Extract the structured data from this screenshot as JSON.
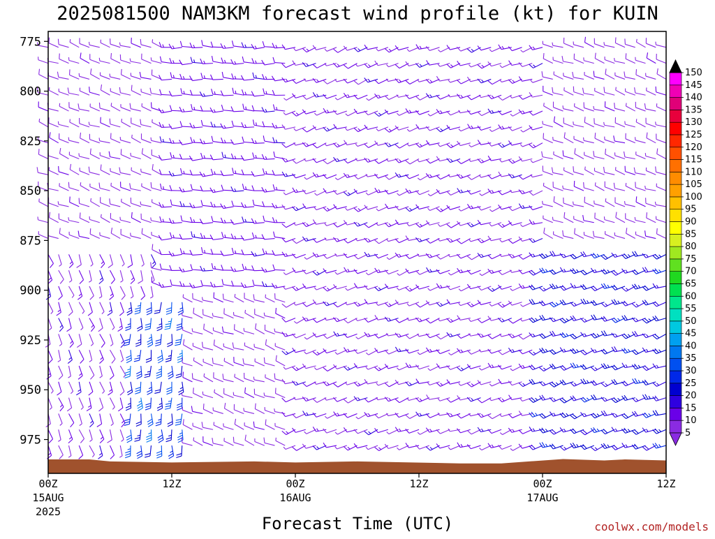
{
  "chart_data": {
    "type": "wind-barb-time-height",
    "title": "2025081500 NAM3KM forecast wind profile (kt) for KUIN",
    "xlabel": "Forecast Time (UTC)",
    "ylabel": "",
    "credit": "coolwx.com/models",
    "y_axis": {
      "units": "hPa",
      "range": [
        770,
        992
      ],
      "inverted": true,
      "ticks": [
        "775",
        "800",
        "825",
        "850",
        "875",
        "900",
        "925",
        "950",
        "975"
      ]
    },
    "x_axis": {
      "units": "forecast hour",
      "range": [
        0,
        60
      ],
      "ticks": [
        {
          "hour": 0,
          "label": "00Z",
          "sub": "15AUG",
          "sub2": "2025"
        },
        {
          "hour": 12,
          "label": "12Z",
          "sub": "",
          "sub2": ""
        },
        {
          "hour": 24,
          "label": "00Z",
          "sub": "16AUG",
          "sub2": ""
        },
        {
          "hour": 36,
          "label": "12Z",
          "sub": "",
          "sub2": ""
        },
        {
          "hour": 48,
          "label": "00Z",
          "sub": "17AUG",
          "sub2": ""
        },
        {
          "hour": 60,
          "label": "12Z",
          "sub": "",
          "sub2": ""
        }
      ]
    },
    "colorbar": {
      "units": "kt",
      "ticks": [
        "5",
        "10",
        "15",
        "20",
        "25",
        "30",
        "35",
        "40",
        "45",
        "50",
        "55",
        "60",
        "65",
        "70",
        "75",
        "80",
        "85",
        "90",
        "95",
        "100",
        "105",
        "110",
        "115",
        "120",
        "125",
        "130",
        "135",
        "140",
        "145",
        "150"
      ],
      "colors": [
        "#8a2be2",
        "#6a00e8",
        "#2f00e0",
        "#0000d0",
        "#0028e8",
        "#0050f0",
        "#0078f0",
        "#00a0f0",
        "#00c8e0",
        "#00e0c0",
        "#00e68c",
        "#00e050",
        "#20d820",
        "#60e020",
        "#a0e820",
        "#d8f020",
        "#ffff00",
        "#ffe000",
        "#ffc000",
        "#ffa000",
        "#ff8c00",
        "#ff7000",
        "#ff5000",
        "#ff2800",
        "#ff0000",
        "#e8003c",
        "#e00078",
        "#f000b4",
        "#ff00ff"
      ]
    },
    "terrain": {
      "color": "#a0522d",
      "surface_pressure_hpa": [
        [
          0,
          985
        ],
        [
          4,
          985
        ],
        [
          6,
          986
        ],
        [
          12,
          986.5
        ],
        [
          20,
          986
        ],
        [
          24,
          986.5
        ],
        [
          30,
          986
        ],
        [
          40,
          987
        ],
        [
          44,
          987
        ],
        [
          50,
          984.8
        ],
        [
          54,
          985.5
        ],
        [
          56,
          985
        ],
        [
          60,
          985.5
        ]
      ]
    },
    "series": [],
    "wind_summary": [
      {
        "hours": [
          0,
          10
        ],
        "levels_hpa": [
          775,
          870
        ],
        "speed_kt": [
          5,
          10
        ],
        "from": "W-NW"
      },
      {
        "hours": [
          0,
          10
        ],
        "levels_hpa": [
          875,
          985
        ],
        "speed_kt": [
          3,
          15
        ],
        "from": "S-SE"
      },
      {
        "hours": [
          8,
          13
        ],
        "levels_hpa": [
          900,
          985
        ],
        "speed_kt": [
          20,
          35
        ],
        "from": "S"
      },
      {
        "hours": [
          12,
          24
        ],
        "levels_hpa": [
          775,
          900
        ],
        "speed_kt": [
          10,
          15
        ],
        "from": "W"
      },
      {
        "hours": [
          24,
          48
        ],
        "levels_hpa": [
          775,
          985
        ],
        "speed_kt": [
          5,
          15
        ],
        "from": "SW-W"
      },
      {
        "hours": [
          48,
          60
        ],
        "levels_hpa": [
          875,
          985
        ],
        "speed_kt": [
          15,
          25
        ],
        "from": "SW-W"
      }
    ]
  }
}
